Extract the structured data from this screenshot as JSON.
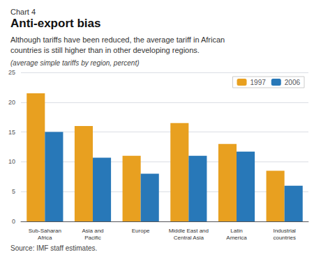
{
  "chart_data": {
    "type": "bar",
    "chart_label": "Chart 4",
    "title": "Anti-export bias",
    "subtitle": "Although tariffs have been reduced, the average tariff in African\ncountries is still higher than in other developing regions.",
    "ylabel": "(average simple tariffs by region, percent)",
    "source": "Source: IMF staff estimates.",
    "categories": [
      "Sub-Saharan\nAfrica",
      "Asia and\nPacific",
      "Europe",
      "Middle East and\nCentral Asia",
      "Latin\nAmerica",
      "Industrial\ncountries"
    ],
    "series": [
      {
        "name": "1997",
        "color": "#E8A020",
        "values": [
          21.5,
          16.0,
          11.0,
          16.5,
          13.0,
          8.5
        ]
      },
      {
        "name": "2006",
        "color": "#2878B8",
        "values": [
          15.0,
          10.7,
          8.0,
          11.0,
          11.7,
          6.0
        ]
      }
    ],
    "ylim": [
      0,
      25
    ],
    "yticks": [
      0,
      5,
      10,
      15,
      20,
      25
    ],
    "grid": true,
    "legend": "upper right"
  }
}
